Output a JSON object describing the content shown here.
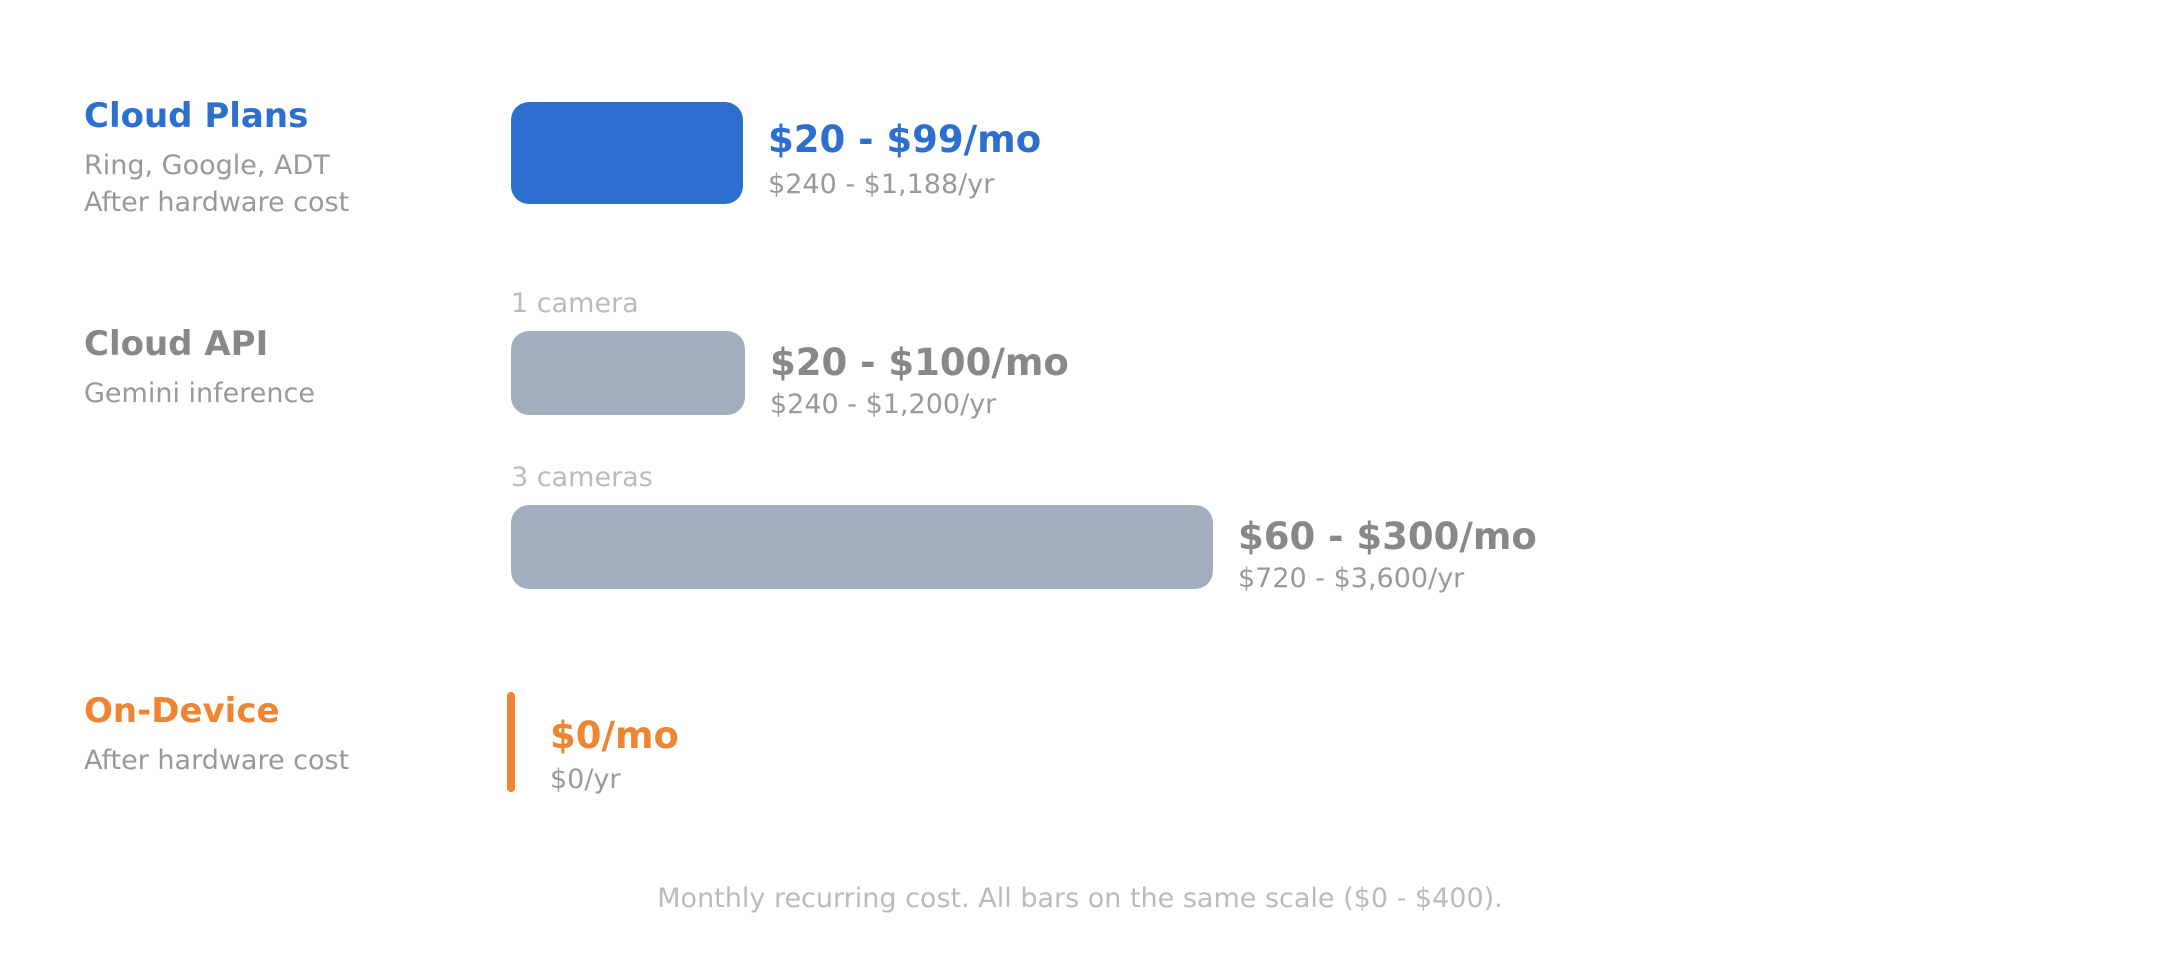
{
  "colors": {
    "cloud_plans": "#2c6fce",
    "cloud_api": "#888888",
    "cloud_api_bar": "#a2aebe",
    "on_device": "#ef8532"
  },
  "chart_data": {
    "type": "bar",
    "orientation": "horizontal",
    "unit": "USD per month",
    "xlim": [
      0,
      400
    ],
    "groups": [
      {
        "key": "cloud_plans",
        "title": "Cloud Plans",
        "subtitles": [
          "Ring, Google, ADT",
          "After hardware cost"
        ],
        "bars": [
          {
            "caption": "",
            "low": 20,
            "high": 99,
            "value_label": "$20 - $99/mo",
            "yearly_label": "$240 - $1,188/yr"
          }
        ]
      },
      {
        "key": "cloud_api",
        "title": "Cloud API",
        "subtitles": [
          "Gemini inference"
        ],
        "bars": [
          {
            "caption": "1 camera",
            "low": 20,
            "high": 100,
            "value_label": "$20 - $100/mo",
            "yearly_label": "$240 - $1,200/yr"
          },
          {
            "caption": "3 cameras",
            "low": 60,
            "high": 300,
            "value_label": "$60 - $300/mo",
            "yearly_label": "$720 - $3,600/yr"
          }
        ]
      },
      {
        "key": "on_device",
        "title": "On-Device",
        "subtitles": [
          "After hardware cost"
        ],
        "bars": [
          {
            "caption": "",
            "low": 0,
            "high": 0,
            "value_label": "$0/mo",
            "yearly_label": "$0/yr"
          }
        ]
      }
    ],
    "footnote": "Monthly recurring cost. All bars on the same scale ($0 - $400)."
  }
}
